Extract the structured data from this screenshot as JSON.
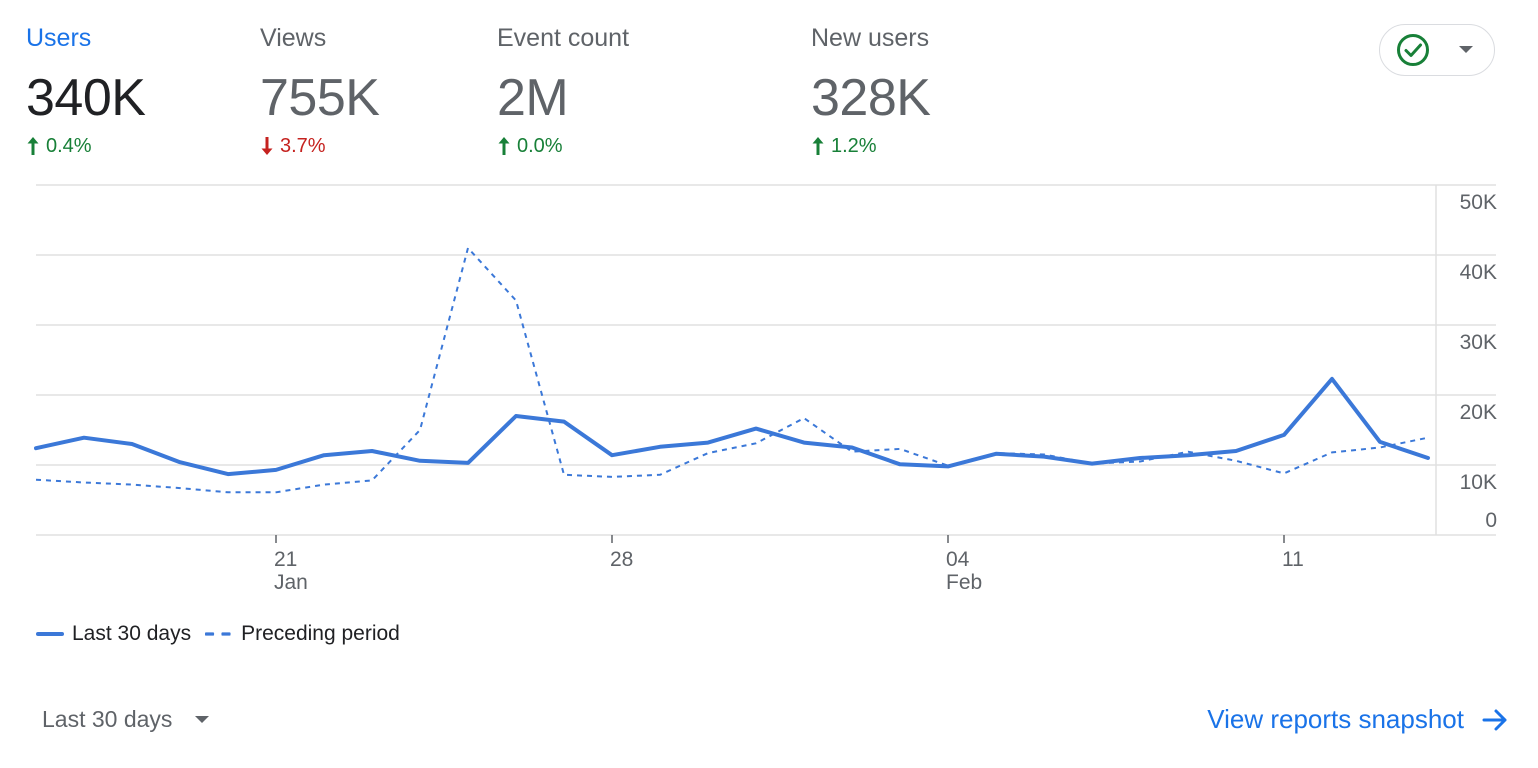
{
  "metrics": [
    {
      "label": "Users",
      "value": "340K",
      "change": "0.4%",
      "direction": "up",
      "active": true
    },
    {
      "label": "Views",
      "value": "755K",
      "change": "3.7%",
      "direction": "down",
      "active": false
    },
    {
      "label": "Event count",
      "value": "2M",
      "change": "0.0%",
      "direction": "up",
      "active": false
    },
    {
      "label": "New users",
      "value": "328K",
      "change": "1.2%",
      "direction": "up",
      "active": false
    }
  ],
  "status_button": {
    "icon": "check-circle-icon",
    "dropdown_icon": "caret-down-icon"
  },
  "colors": {
    "accent": "#1a73e8",
    "line": "#3b78d8",
    "up": "#188038",
    "down": "#c5221f",
    "grid": "#e0e0e0"
  },
  "chart_data": {
    "type": "line",
    "y_ticks": [
      "50K",
      "40K",
      "30K",
      "20K",
      "10K",
      "0"
    ],
    "ylim": [
      0,
      50000
    ],
    "grid": true,
    "legend_position": "bottom-left",
    "x_ticks": [
      {
        "index": 5,
        "day": "21",
        "month": "Jan"
      },
      {
        "index": 12,
        "day": "28",
        "month": ""
      },
      {
        "index": 19,
        "day": "04",
        "month": "Feb"
      },
      {
        "index": 26,
        "day": "11",
        "month": ""
      }
    ],
    "series": [
      {
        "name": "Last 30 days",
        "style": "solid",
        "values": [
          12400,
          13900,
          13000,
          10400,
          8700,
          9300,
          11400,
          12000,
          10600,
          10300,
          17000,
          16200,
          11400,
          12600,
          13200,
          15200,
          13200,
          12500,
          10100,
          9800,
          11600,
          11200,
          10200,
          11000,
          11400,
          12000,
          14300,
          22300,
          13300,
          11000
        ]
      },
      {
        "name": "Preceding period",
        "style": "dashed",
        "values": [
          7900,
          7500,
          7200,
          6700,
          6100,
          6100,
          7200,
          7800,
          15000,
          41000,
          33500,
          8600,
          8300,
          8600,
          11700,
          13100,
          16700,
          11900,
          12300,
          9900,
          11700,
          11500,
          10200,
          10500,
          11900,
          10600,
          8800,
          11800,
          12500,
          13900
        ]
      }
    ]
  },
  "legend": [
    {
      "label": "Last 30 days",
      "style": "solid"
    },
    {
      "label": "Preceding period",
      "style": "dashed"
    }
  ],
  "footer": {
    "period_label": "Last 30 days",
    "view_link": "View reports snapshot"
  }
}
